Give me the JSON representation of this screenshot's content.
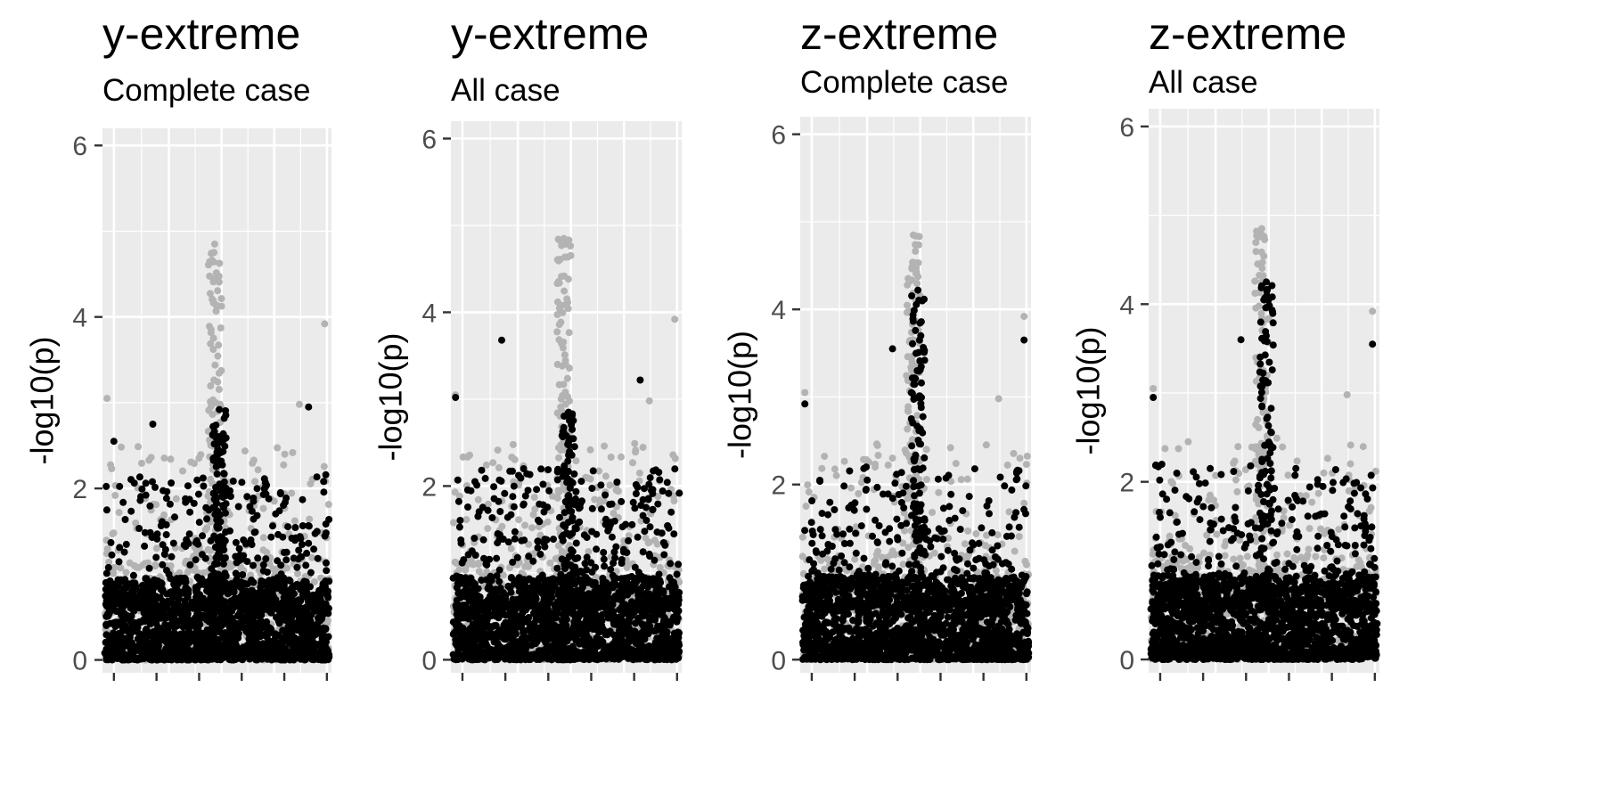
{
  "chart_data": [
    {
      "type": "scatter",
      "title": "y-extreme",
      "subtitle": "Complete case",
      "xlabel": "",
      "ylabel": "-log10(p)",
      "ylim": [
        -0.15,
        6.2
      ],
      "y_ticks": [
        0,
        2,
        4,
        6
      ],
      "x_tick_count": 6,
      "grid": true,
      "series": [
        {
          "color": "#b3b3b3",
          "role": "background",
          "peak": [
            0.49,
            4.85
          ],
          "secondary": [
            [
              0.97,
              3.92
            ],
            [
              0.02,
              3.05
            ],
            [
              0.86,
              2.98
            ]
          ]
        },
        {
          "color": "#000000",
          "role": "foreground",
          "peak": [
            0.51,
            2.92
          ],
          "secondary": [
            [
              0.22,
              2.75
            ],
            [
              0.05,
              2.55
            ],
            [
              0.9,
              2.95
            ]
          ]
        }
      ]
    },
    {
      "type": "scatter",
      "title": "y-extreme",
      "subtitle": "All case",
      "xlabel": "",
      "ylabel": "-log10(p)",
      "ylim": [
        -0.15,
        6.2
      ],
      "y_ticks": [
        0,
        2,
        4,
        6
      ],
      "x_tick_count": 6,
      "grid": true,
      "series": [
        {
          "color": "#b3b3b3",
          "role": "background",
          "peak": [
            0.49,
            4.85
          ],
          "secondary": [
            [
              0.97,
              3.92
            ],
            [
              0.02,
              3.05
            ],
            [
              0.86,
              2.98
            ]
          ]
        },
        {
          "color": "#000000",
          "role": "foreground",
          "peak": [
            0.51,
            2.85
          ],
          "secondary": [
            [
              0.22,
              3.68
            ],
            [
              0.02,
              3.02
            ],
            [
              0.82,
              3.22
            ]
          ]
        }
      ]
    },
    {
      "type": "scatter",
      "title": "z-extreme",
      "subtitle": "Complete case",
      "xlabel": "",
      "ylabel": "-log10(p)",
      "ylim": [
        -0.15,
        6.2
      ],
      "y_ticks": [
        0,
        2,
        4,
        6
      ],
      "x_tick_count": 6,
      "grid": true,
      "series": [
        {
          "color": "#b3b3b3",
          "role": "background",
          "peak": [
            0.49,
            4.85
          ],
          "secondary": [
            [
              0.97,
              3.92
            ],
            [
              0.02,
              3.05
            ],
            [
              0.86,
              2.98
            ]
          ]
        },
        {
          "color": "#000000",
          "role": "foreground",
          "peak": [
            0.51,
            4.22
          ],
          "secondary": [
            [
              0.4,
              3.55
            ],
            [
              0.97,
              3.65
            ],
            [
              0.02,
              2.92
            ]
          ]
        }
      ]
    },
    {
      "type": "scatter",
      "title": "z-extreme",
      "subtitle": "All case",
      "xlabel": "",
      "ylabel": "-log10(p)",
      "ylim": [
        -0.15,
        6.2
      ],
      "y_ticks": [
        0,
        2,
        4,
        6
      ],
      "x_tick_count": 6,
      "grid": true,
      "series": [
        {
          "color": "#b3b3b3",
          "role": "background",
          "peak": [
            0.49,
            4.85
          ],
          "secondary": [
            [
              0.97,
              3.92
            ],
            [
              0.02,
              3.05
            ],
            [
              0.86,
              2.98
            ]
          ]
        },
        {
          "color": "#000000",
          "role": "foreground",
          "peak": [
            0.51,
            4.25
          ],
          "secondary": [
            [
              0.4,
              3.6
            ],
            [
              0.97,
              3.55
            ],
            [
              0.02,
              2.95
            ]
          ]
        }
      ]
    }
  ]
}
